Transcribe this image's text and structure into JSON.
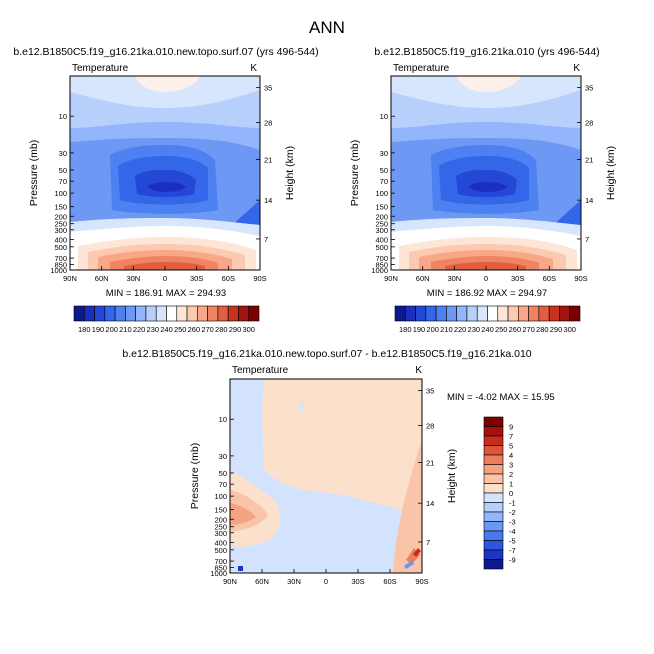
{
  "page": {
    "title": "ANN"
  },
  "colors": {
    "level_colors_left": [
      "#0b1a8c",
      "#1a2fbf",
      "#2447d6",
      "#3366e8",
      "#4d80f0",
      "#6d99f5",
      "#93b5fb",
      "#b6cffb",
      "#d8e6fd",
      "#ffffff",
      "#fde6d6",
      "#fbcab0",
      "#f8a889",
      "#f08462",
      "#e25e3f",
      "#c8331f",
      "#a11410",
      "#7a0000"
    ],
    "level_colors_diff": [
      "#0a1a8e",
      "#1c33c6",
      "#2d55df",
      "#4878ee",
      "#6a98f3",
      "#93b5fa",
      "#b6cffb",
      "#d3e3fd",
      "#fbe0cc",
      "#f9c4a8",
      "#f5a383",
      "#ee7d5b",
      "#de553a",
      "#c72b1b",
      "#a51010",
      "#7d0000"
    ]
  },
  "chart_data": [
    {
      "type": "heatmap",
      "panel": "top-left",
      "title": "b.e12.B1850C5.f19_g16.21ka.010.new.topo.surf.07 (yrs 496-544)",
      "subtitle_left": "Temperature",
      "subtitle_right": "K",
      "xlabel": "",
      "ylabel": "Pressure (mb)",
      "ylabel_right": "Height (km)",
      "x_ticks": [
        "90N",
        "60N",
        "30N",
        "0",
        "30S",
        "60S",
        "90S"
      ],
      "y_ticks": [
        "10",
        "30",
        "50",
        "70",
        "100",
        "150",
        "200",
        "250",
        "300",
        "400",
        "500",
        "700",
        "850",
        "1000"
      ],
      "y_ticks_right": [
        "35",
        "28",
        "21",
        "14",
        "7"
      ],
      "stats": "MIN = 186.91   MAX = 294.93",
      "colorbar_labels": [
        "180",
        "190",
        "200",
        "210",
        "220",
        "230",
        "240",
        "250",
        "260",
        "270",
        "280",
        "290",
        "300"
      ],
      "levels": [
        180,
        185,
        190,
        195,
        200,
        205,
        210,
        215,
        220,
        225,
        230,
        235,
        240,
        245,
        250,
        255,
        260,
        265,
        270,
        275,
        280,
        285,
        290,
        295,
        300
      ],
      "min": 186.91,
      "max": 294.93
    },
    {
      "type": "heatmap",
      "panel": "top-right",
      "title": "b.e12.B1850C5.f19_g16.21ka.010 (yrs 496-544)",
      "subtitle_left": "Temperature",
      "subtitle_right": "K",
      "xlabel": "",
      "ylabel": "Pressure (mb)",
      "ylabel_right": "Height (km)",
      "x_ticks": [
        "90N",
        "60N",
        "30N",
        "0",
        "30S",
        "60S",
        "90S"
      ],
      "y_ticks": [
        "10",
        "30",
        "50",
        "70",
        "100",
        "150",
        "200",
        "250",
        "300",
        "400",
        "500",
        "700",
        "850",
        "1000"
      ],
      "y_ticks_right": [
        "35",
        "28",
        "21",
        "14",
        "7"
      ],
      "stats": "MIN = 186.92   MAX = 294.97",
      "colorbar_labels": [
        "180",
        "190",
        "200",
        "210",
        "220",
        "230",
        "240",
        "250",
        "260",
        "270",
        "280",
        "290",
        "300"
      ],
      "min": 186.92,
      "max": 294.97
    },
    {
      "type": "heatmap",
      "panel": "bottom",
      "title": "b.e12.B1850C5.f19_g16.21ka.010.new.topo.surf.07 - b.e12.B1850C5.f19_g16.21ka.010",
      "subtitle_left": "Temperature",
      "subtitle_right": "K",
      "ylabel": "Pressure (mb)",
      "ylabel_right": "Height (km)",
      "x_ticks": [
        "90N",
        "60N",
        "30N",
        "0",
        "30S",
        "60S",
        "90S"
      ],
      "y_ticks": [
        "10",
        "30",
        "50",
        "70",
        "100",
        "150",
        "200",
        "250",
        "300",
        "400",
        "500",
        "700",
        "850",
        "1000"
      ],
      "y_ticks_right": [
        "35",
        "28",
        "21",
        "14",
        "7"
      ],
      "stats": "MIN = -4.02   MAX = 15.95",
      "colorbar_labels": [
        "9",
        "7",
        "5",
        "4",
        "3",
        "2",
        "1",
        "0",
        "-1",
        "-2",
        "-3",
        "-4",
        "-5",
        "-7",
        "-9"
      ],
      "min": -4.02,
      "max": 15.95
    }
  ]
}
